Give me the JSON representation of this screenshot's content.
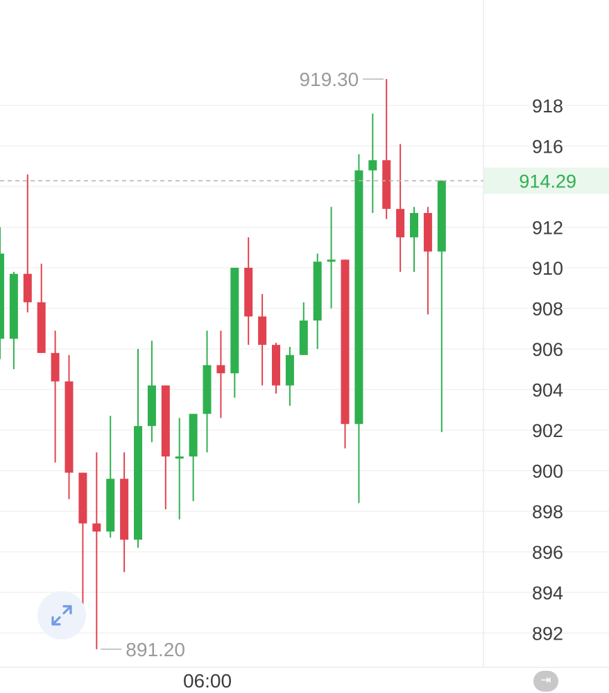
{
  "chart_data": {
    "type": "candlestick",
    "y_axis": {
      "ticks": [
        "918",
        "916",
        "912",
        "910",
        "908",
        "906",
        "904",
        "902",
        "900",
        "898",
        "896",
        "894",
        "892"
      ],
      "range": [
        890.5,
        922
      ]
    },
    "x_axis": {
      "ticks": [
        "06:00"
      ]
    },
    "current_price": {
      "value": 914.29,
      "label": "914.29"
    },
    "annotations": {
      "high": {
        "value": 919.3,
        "label": "919.30"
      },
      "low": {
        "value": 891.2,
        "label": "891.20"
      }
    },
    "candles": [
      {
        "o": 906.5,
        "h": 912.0,
        "l": 905.5,
        "c": 910.7
      },
      {
        "o": 906.5,
        "h": 909.8,
        "l": 905.0,
        "c": 909.7
      },
      {
        "o": 909.7,
        "h": 914.6,
        "l": 907.8,
        "c": 908.3
      },
      {
        "o": 908.3,
        "h": 910.2,
        "l": 905.8,
        "c": 905.8
      },
      {
        "o": 905.8,
        "h": 906.9,
        "l": 900.4,
        "c": 904.4
      },
      {
        "o": 904.4,
        "h": 905.7,
        "l": 898.6,
        "c": 899.9
      },
      {
        "o": 899.9,
        "h": 899.9,
        "l": 893.1,
        "c": 897.4
      },
      {
        "o": 897.4,
        "h": 900.9,
        "l": 891.2,
        "c": 897.0
      },
      {
        "o": 897.0,
        "h": 902.7,
        "l": 896.7,
        "c": 899.6
      },
      {
        "o": 899.6,
        "h": 900.9,
        "l": 895.0,
        "c": 896.6
      },
      {
        "o": 896.6,
        "h": 906.0,
        "l": 896.2,
        "c": 902.2
      },
      {
        "o": 902.2,
        "h": 906.4,
        "l": 901.4,
        "c": 904.2
      },
      {
        "o": 904.2,
        "h": 904.2,
        "l": 898.1,
        "c": 900.7
      },
      {
        "o": 900.7,
        "h": 902.6,
        "l": 897.6,
        "c": 900.7
      },
      {
        "o": 900.7,
        "h": 902.8,
        "l": 898.5,
        "c": 902.8
      },
      {
        "o": 902.8,
        "h": 906.9,
        "l": 900.9,
        "c": 905.2
      },
      {
        "o": 905.2,
        "h": 906.9,
        "l": 902.6,
        "c": 904.8
      },
      {
        "o": 904.8,
        "h": 910.0,
        "l": 903.6,
        "c": 910.0
      },
      {
        "o": 910.0,
        "h": 911.5,
        "l": 906.2,
        "c": 907.6
      },
      {
        "o": 907.6,
        "h": 908.7,
        "l": 904.2,
        "c": 906.2
      },
      {
        "o": 906.2,
        "h": 906.3,
        "l": 903.8,
        "c": 904.2
      },
      {
        "o": 904.2,
        "h": 906.1,
        "l": 903.2,
        "c": 905.7
      },
      {
        "o": 905.7,
        "h": 908.3,
        "l": 905.7,
        "c": 907.4
      },
      {
        "o": 907.4,
        "h": 910.7,
        "l": 906.0,
        "c": 910.3
      },
      {
        "o": 910.3,
        "h": 913.0,
        "l": 908.0,
        "c": 910.4
      },
      {
        "o": 910.4,
        "h": 910.4,
        "l": 901.1,
        "c": 902.3
      },
      {
        "o": 902.3,
        "h": 915.6,
        "l": 898.4,
        "c": 914.8
      },
      {
        "o": 914.8,
        "h": 917.6,
        "l": 912.7,
        "c": 915.3
      },
      {
        "o": 915.3,
        "h": 919.3,
        "l": 912.4,
        "c": 912.9
      },
      {
        "o": 912.9,
        "h": 916.1,
        "l": 909.8,
        "c": 911.5
      },
      {
        "o": 911.5,
        "h": 913.0,
        "l": 909.8,
        "c": 912.7
      },
      {
        "o": 912.7,
        "h": 913.0,
        "l": 907.7,
        "c": 910.8
      },
      {
        "o": 910.8,
        "h": 914.3,
        "l": 901.9,
        "c": 914.3
      }
    ],
    "colors": {
      "up": "#2fb04f",
      "down": "#e0434f",
      "grid": "#efefef",
      "price_line": "#b5b5b5",
      "price_box": "#e9f7ec"
    }
  },
  "controls": {
    "expand_icon": "expand-arrows-icon",
    "jump_latest_icon": "jump-to-latest-icon",
    "jump_latest_glyph": "⇥"
  }
}
